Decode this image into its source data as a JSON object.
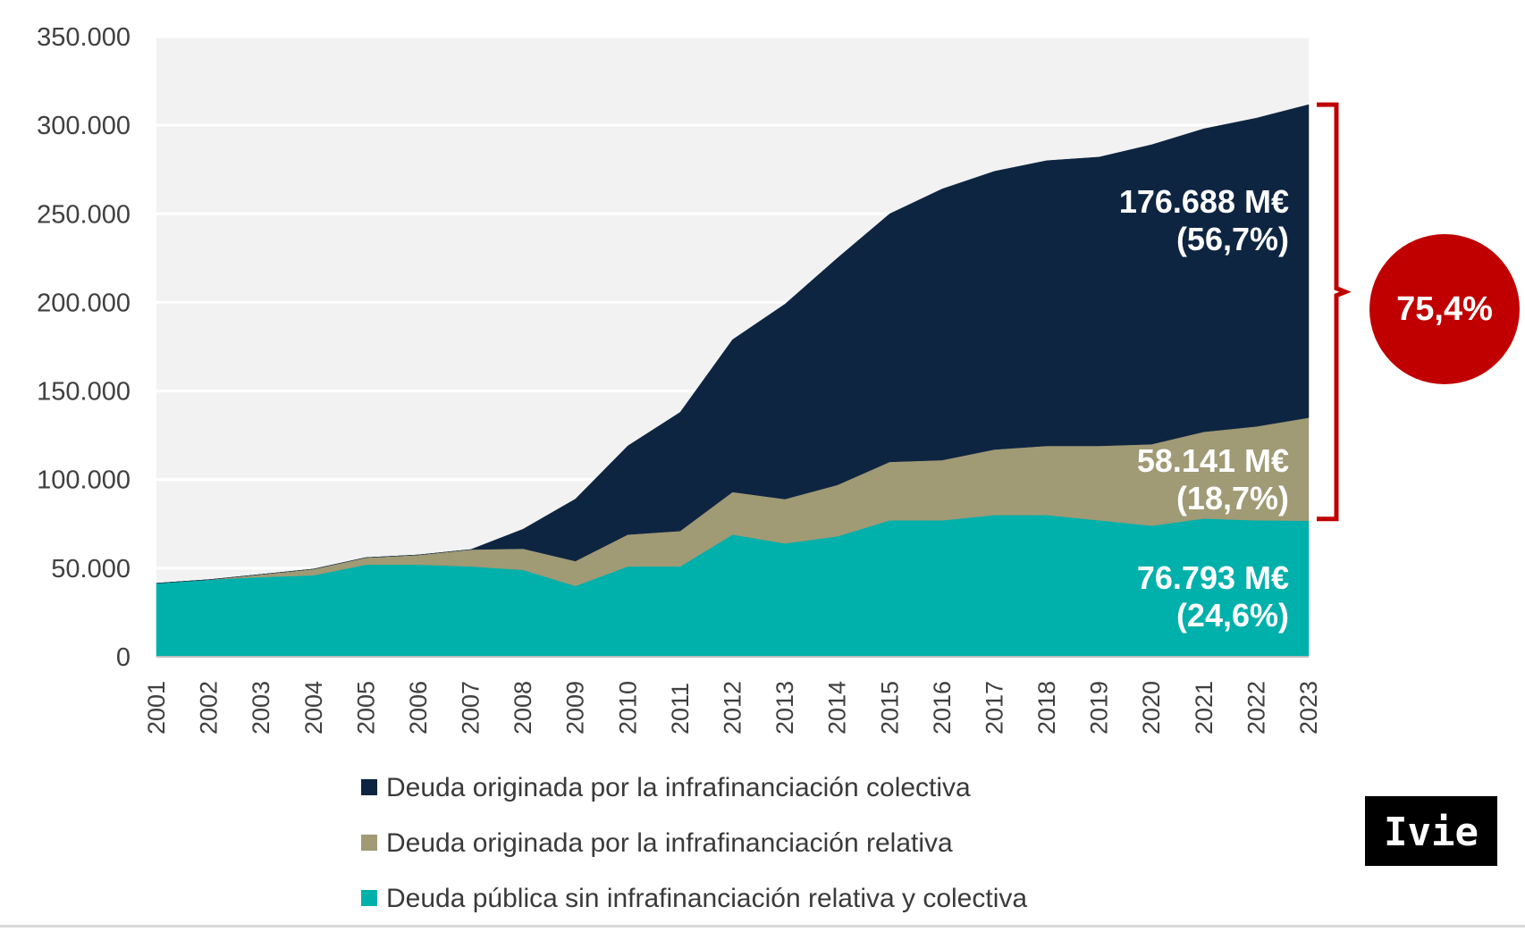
{
  "chart_data": {
    "type": "area",
    "stacked": true,
    "title": "",
    "xlabel": "",
    "ylabel": "",
    "ylim": [
      0,
      350000
    ],
    "y_ticks": [
      0,
      50000,
      100000,
      150000,
      200000,
      250000,
      300000,
      350000
    ],
    "y_tick_labels": [
      "0",
      "50.000",
      "100.000",
      "150.000",
      "200.000",
      "250.000",
      "300.000",
      "350.000"
    ],
    "grid": "horizontal",
    "categories": [
      "2001",
      "2002",
      "2003",
      "2004",
      "2005",
      "2006",
      "2007",
      "2008",
      "2009",
      "2010",
      "2011",
      "2012",
      "2013",
      "2014",
      "2015",
      "2016",
      "2017",
      "2018",
      "2019",
      "2020",
      "2021",
      "2022",
      "2023"
    ],
    "series": [
      {
        "name": "Deuda pública sin infrafinanciación relativa y colectiva",
        "color": "#00b0aa",
        "values": [
          41500,
          43500,
          45000,
          46000,
          52000,
          52000,
          51000,
          49000,
          40000,
          51000,
          51000,
          69000,
          64000,
          68000,
          77000,
          77000,
          80000,
          80000,
          77000,
          74000,
          78000,
          77000,
          76793
        ]
      },
      {
        "name": "Deuda originada por la infrafinanciación relativa",
        "color": "#a09a75",
        "values": [
          0,
          0,
          1500,
          3500,
          4000,
          5500,
          9500,
          12000,
          14000,
          18000,
          20000,
          24000,
          25000,
          29000,
          33000,
          34000,
          37000,
          39000,
          42000,
          46000,
          49000,
          53000,
          58141
        ]
      },
      {
        "name": "Deuda originada por la infrafinanciación colectiva",
        "color": "#0e2541",
        "values": [
          0,
          0,
          0,
          0,
          0,
          0,
          0,
          11000,
          35000,
          50000,
          67000,
          86000,
          110000,
          128000,
          140000,
          153000,
          157000,
          161000,
          163000,
          169000,
          171000,
          174000,
          176688
        ]
      }
    ],
    "legend_order": [
      "Deuda originada por la infrafinanciación colectiva",
      "Deuda originada por la infrafinanciación relativa",
      "Deuda pública sin infrafinanciación relativa y colectiva"
    ],
    "legend_position": "bottom",
    "annotations": {
      "colectiva": {
        "value": "176.688 M€",
        "pct": "(56,7%)"
      },
      "relativa": {
        "value": "58.141 M€",
        "pct": "(18,7%)"
      },
      "sin": {
        "value": "76.793 M€",
        "pct": "(24,6%)"
      },
      "bracket_total": "75,4%",
      "bracket_color": "#c00000"
    },
    "plot_background": "#f2f2f2"
  },
  "logo": {
    "text": "Ivie"
  }
}
